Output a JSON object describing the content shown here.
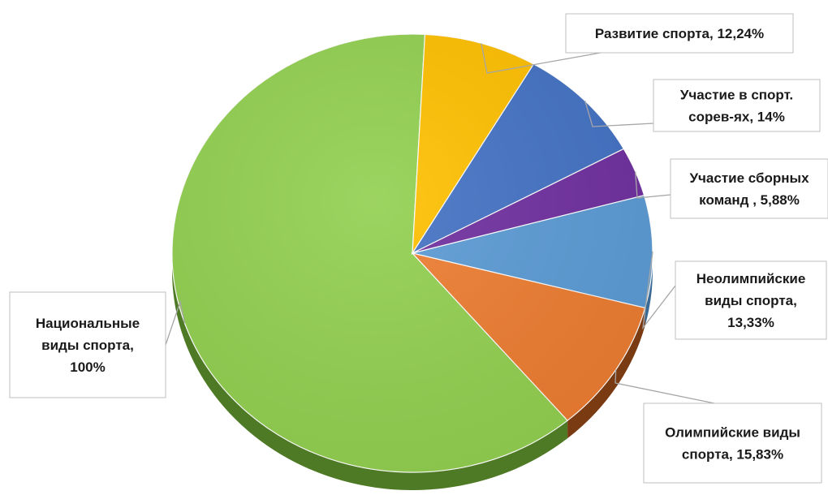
{
  "chart_data": {
    "type": "pie",
    "style": "3d",
    "slices": [
      {
        "label_lines": [
          "Национальные",
          "виды спорта,",
          "100%"
        ],
        "label": "Национальные виды спорта, 100%",
        "value": 100,
        "color": "#92d050",
        "side_color": "#4e7a25"
      },
      {
        "label_lines": [
          "Развитие спорта, 12,24%"
        ],
        "label": "Развитие спорта, 12,24%",
        "value": 12.24,
        "color": "#ffc000",
        "side_color": "#a07800"
      },
      {
        "label_lines": [
          "Участие в спорт.",
          "сорев-ях, 14%"
        ],
        "label": "Участие в спорт. сорев-ях, 14%",
        "value": 14,
        "color": "#4472c4",
        "side_color": "#2a4a85"
      },
      {
        "label_lines": [
          "Участие сборных",
          "команд , 5,88%"
        ],
        "label": "Участие сборных команд , 5,88%",
        "value": 5.88,
        "color": "#7030a0",
        "side_color": "#4a1f6b"
      },
      {
        "label_lines": [
          "Неолимпийские",
          "виды спорта,",
          "13,33%"
        ],
        "label": "Неолимпийские виды спорта, 13,33%",
        "value": 13.33,
        "color": "#5b9bd5",
        "side_color": "#3a6a96"
      },
      {
        "label_lines": [
          "Олимпийские виды",
          "спорта, 15,83%"
        ],
        "label": "Олимпийские виды спорта, 15,83%",
        "value": 15.83,
        "color": "#ed7d31",
        "side_color": "#7a3a12"
      }
    ]
  }
}
